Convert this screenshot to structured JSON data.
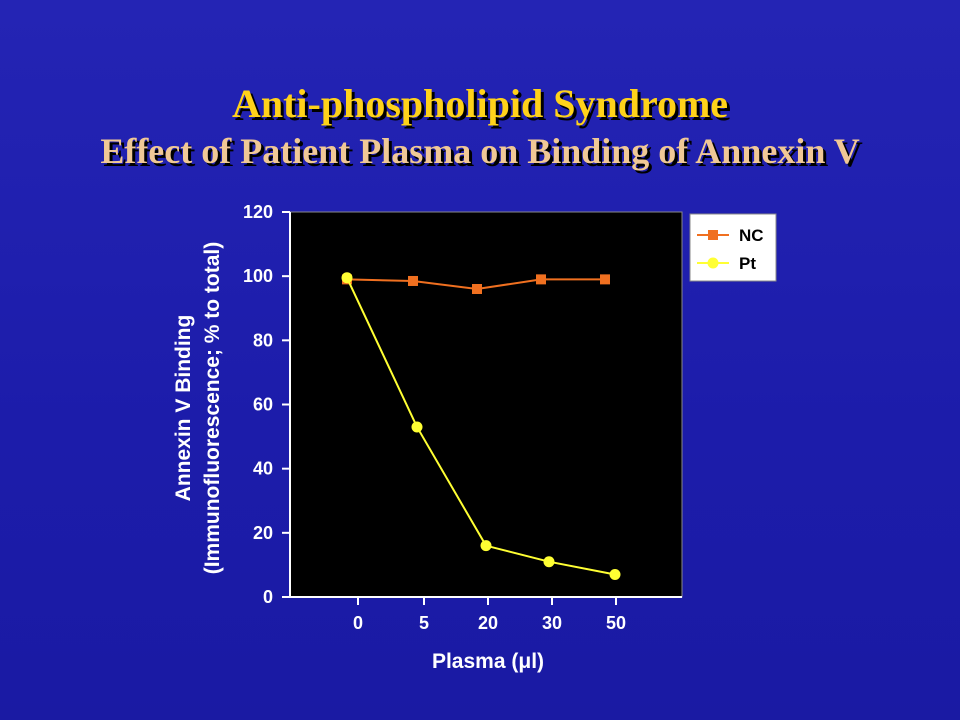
{
  "slide": {
    "title": "Anti-phospholipid Syndrome",
    "subtitle": "Effect of Patient Plasma on Binding of Annexin V"
  },
  "chart_data": {
    "type": "line",
    "x": [
      "0",
      "5",
      "20",
      "30",
      "50"
    ],
    "xlabel": "Plasma (μl)",
    "ylabel_line1": "Annexin V Binding",
    "ylabel_line2": "(Immunofluorescence; % to total)",
    "ylim": [
      0,
      120
    ],
    "yticks": [
      0,
      20,
      40,
      60,
      80,
      100,
      120
    ],
    "series": [
      {
        "name": "NC",
        "marker": "square",
        "color": "#f07020",
        "values": [
          99,
          98.5,
          96,
          99,
          99
        ]
      },
      {
        "name": "Pt",
        "marker": "circle",
        "color": "#ffff33",
        "values": [
          99.5,
          53,
          16,
          11,
          7
        ]
      }
    ],
    "plot_background": "#000000",
    "legend_position": "right"
  }
}
